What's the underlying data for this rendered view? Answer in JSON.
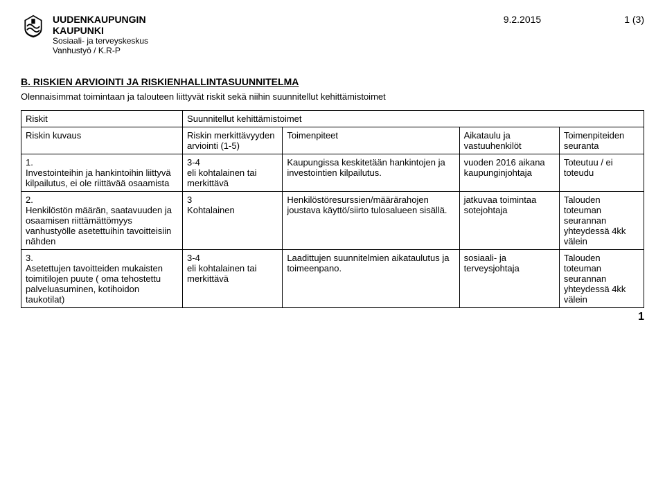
{
  "header": {
    "orgLine1": "UUDENKAUPUNGIN",
    "orgLine2": "KAUPUNKI",
    "orgLine3": "Sosiaali- ja terveyskeskus",
    "orgLine4": "Vanhustyö / K.R-P",
    "date": "9.2.2015",
    "pageOf": "1 (3)"
  },
  "section": {
    "title": "B. RISKIEN ARVIOINTI JA RISKIENHALLINTASUUNNITELMA",
    "intro": "Olennaisimmat toimintaan ja talouteen liittyvät riskit sekä niihin suunnitellut kehittämistoimet"
  },
  "table": {
    "head": {
      "riskit": "Riskit",
      "suunnitellut": "Suunnitellut kehittämistoimet",
      "riskinKuvaus": "Riskin kuvaus",
      "arviointi": "Riskin merkittävyyden arviointi (1-5)",
      "toimenpiteet": "Toimenpiteet",
      "aikataulu": "Aikataulu ja vastuuhenkilöt",
      "seuranta": "Toimenpiteiden seuranta"
    },
    "rows": [
      {
        "kuvaus": "1.\nInvestointeihin ja hankintoihin liittyvä kilpailutus, ei ole riittävää osaamista",
        "arviointi": "3-4\neli kohtalainen tai merkittävä",
        "toimenpiteet": "Kaupungissa keskitetään hankintojen ja investointien kilpailutus.",
        "aikataulu": "vuoden 2016 aikana kaupunginjohtaja",
        "seuranta": "Toteutuu / ei toteudu"
      },
      {
        "kuvaus": "2.\nHenkilöstön määrän, saatavuuden ja osaamisen riittämättömyys vanhustyölle asetettuihin tavoitteisiin nähden",
        "arviointi": "3\nKohtalainen",
        "toimenpiteet": "Henkilöstöresurssien/määrärahojen joustava käyttö/siirto tulosalueen sisällä.",
        "aikataulu": "jatkuvaa toimintaa sotejohtaja",
        "seuranta": "Talouden toteuman seurannan yhteydessä 4kk välein"
      },
      {
        "kuvaus": "3.\nAsetettujen tavoitteiden mukaisten toimitilojen puute ( oma tehostettu palveluasuminen, kotihoidon taukotilat)",
        "arviointi": "3-4\neli kohtalainen tai merkittävä",
        "toimenpiteet": "Laadittujen suunnitelmien aikataulutus ja toimeenpano.",
        "aikataulu": "sosiaali- ja terveysjohtaja",
        "seuranta": "Talouden toteuman seurannan yhteydessä 4kk välein"
      }
    ]
  },
  "footerPage": "1"
}
